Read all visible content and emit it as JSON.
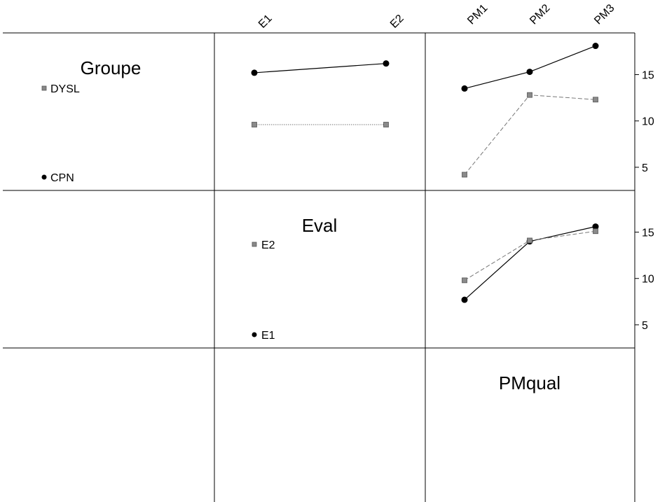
{
  "chart_data": {
    "type": "line",
    "factors": [
      {
        "name": "Groupe",
        "levels": [
          "DYSL",
          "CPN"
        ]
      },
      {
        "name": "Eval",
        "levels": [
          "E1",
          "E2"
        ]
      },
      {
        "name": "PMqual",
        "levels": [
          "PM1",
          "PM2",
          "PM3"
        ]
      }
    ],
    "column_labels": {
      "eval": [
        "E1",
        "E2"
      ],
      "pmqual": [
        "PM1",
        "PM2",
        "PM3"
      ]
    },
    "y_axis": {
      "ticks": [
        "15",
        "10",
        "5"
      ],
      "ylim": [
        2.5,
        19.5
      ]
    },
    "legends": {
      "groupe": [
        "DYSL",
        "CPN"
      ],
      "eval": [
        "E2",
        "E1"
      ]
    },
    "panels": [
      {
        "id": "groupe-by-eval",
        "x_factor": "Eval",
        "trace_factor": "Groupe",
        "categories": [
          "E1",
          "E2"
        ],
        "series": [
          {
            "name": "CPN",
            "style": "solid-dot",
            "values": [
              15.2,
              16.2
            ]
          },
          {
            "name": "DYSL",
            "style": "dotted-square",
            "values": [
              9.6,
              9.6
            ]
          }
        ]
      },
      {
        "id": "groupe-by-pmqual",
        "x_factor": "PMqual",
        "trace_factor": "Groupe",
        "categories": [
          "PM1",
          "PM2",
          "PM3"
        ],
        "series": [
          {
            "name": "CPN",
            "style": "solid-dot",
            "values": [
              13.5,
              15.3,
              18.1
            ]
          },
          {
            "name": "DYSL",
            "style": "dashed-square",
            "values": [
              4.2,
              12.8,
              12.3
            ]
          }
        ]
      },
      {
        "id": "eval-by-pmqual",
        "x_factor": "PMqual",
        "trace_factor": "Eval",
        "categories": [
          "PM1",
          "PM2",
          "PM3"
        ],
        "series": [
          {
            "name": "E1",
            "style": "solid-dot",
            "values": [
              7.7,
              14.0,
              15.6
            ]
          },
          {
            "name": "E2",
            "style": "dashed-square",
            "values": [
              9.8,
              14.1,
              15.1
            ]
          }
        ]
      }
    ],
    "grid": false
  }
}
